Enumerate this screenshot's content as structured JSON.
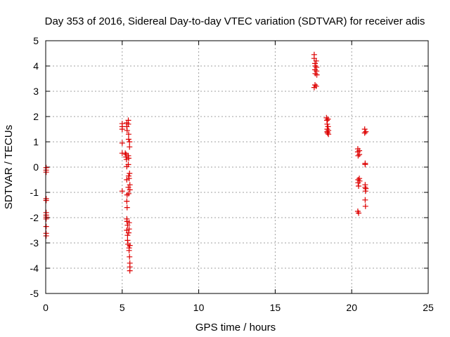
{
  "chart_data": {
    "type": "scatter",
    "title": "Day 353 of 2016, Sidereal Day-to-day VTEC variation (SDTVAR) for receiver adis",
    "xlabel": "GPS time / hours",
    "ylabel": "SDTVAR / TECUs",
    "xlim": [
      0,
      25
    ],
    "ylim": [
      -5,
      5
    ],
    "xticks": [
      0,
      5,
      10,
      15,
      20,
      25
    ],
    "yticks": [
      -5,
      -4,
      -3,
      -2,
      -1,
      0,
      1,
      2,
      3,
      4,
      5
    ],
    "grid": true,
    "marker": "plus",
    "color": "#dd0000",
    "series": [
      {
        "name": "SDTVAR",
        "points": [
          [
            0.03,
            -0.02
          ],
          [
            0.03,
            -0.12
          ],
          [
            0.03,
            -0.2
          ],
          [
            0.03,
            -1.25
          ],
          [
            0.03,
            -1.32
          ],
          [
            0.03,
            -1.8
          ],
          [
            0.03,
            -1.9
          ],
          [
            0.03,
            -1.98
          ],
          [
            0.03,
            -2.05
          ],
          [
            0.03,
            -2.35
          ],
          [
            0.03,
            -2.62
          ],
          [
            0.03,
            -2.72
          ],
          [
            5.0,
            1.72
          ],
          [
            5.0,
            1.6
          ],
          [
            5.0,
            1.5
          ],
          [
            5.0,
            0.95
          ],
          [
            5.0,
            0.55
          ],
          [
            5.0,
            -0.95
          ],
          [
            5.2,
            0.55
          ],
          [
            5.25,
            0.5
          ],
          [
            5.25,
            0.4
          ],
          [
            5.28,
            0.3
          ],
          [
            5.3,
            1.75
          ],
          [
            5.3,
            1.6
          ],
          [
            5.32,
            1.45
          ],
          [
            5.3,
            0.02
          ],
          [
            5.3,
            -0.5
          ],
          [
            5.32,
            -1.1
          ],
          [
            5.3,
            -1.35
          ],
          [
            5.32,
            -1.6
          ],
          [
            5.3,
            -2.05
          ],
          [
            5.32,
            -2.15
          ],
          [
            5.35,
            -2.3
          ],
          [
            5.3,
            -2.5
          ],
          [
            5.35,
            -2.7
          ],
          [
            5.35,
            -2.9
          ],
          [
            5.38,
            -3.05
          ],
          [
            5.4,
            1.85
          ],
          [
            5.4,
            1.7
          ],
          [
            5.42,
            1.3
          ],
          [
            5.42,
            1.1
          ],
          [
            5.4,
            0.45
          ],
          [
            5.42,
            0.35
          ],
          [
            5.4,
            0.1
          ],
          [
            5.42,
            -0.35
          ],
          [
            5.45,
            -0.45
          ],
          [
            5.4,
            -0.8
          ],
          [
            5.42,
            -1.05
          ],
          [
            5.45,
            -2.2
          ],
          [
            5.45,
            -2.45
          ],
          [
            5.42,
            -2.6
          ],
          [
            5.45,
            -3.2
          ],
          [
            5.45,
            -3.3
          ],
          [
            5.48,
            -3.55
          ],
          [
            5.48,
            1.0
          ],
          [
            5.48,
            0.8
          ],
          [
            5.48,
            -0.25
          ],
          [
            5.5,
            -0.7
          ],
          [
            5.5,
            -0.9
          ],
          [
            5.5,
            -3.1
          ],
          [
            5.5,
            -3.8
          ],
          [
            5.5,
            -3.95
          ],
          [
            5.5,
            -4.1
          ],
          [
            17.55,
            4.45
          ],
          [
            17.55,
            4.3
          ],
          [
            17.6,
            4.1
          ],
          [
            17.62,
            4.0
          ],
          [
            17.6,
            3.85
          ],
          [
            17.62,
            3.7
          ],
          [
            17.55,
            3.15
          ],
          [
            17.6,
            3.25
          ],
          [
            17.68,
            4.2
          ],
          [
            17.7,
            3.95
          ],
          [
            17.7,
            3.8
          ],
          [
            17.72,
            3.65
          ],
          [
            17.68,
            3.2
          ],
          [
            18.35,
            1.95
          ],
          [
            18.38,
            1.85
          ],
          [
            18.4,
            1.7
          ],
          [
            18.4,
            1.5
          ],
          [
            18.4,
            1.4
          ],
          [
            18.42,
            1.35
          ],
          [
            18.45,
            1.9
          ],
          [
            18.45,
            1.6
          ],
          [
            18.48,
            1.45
          ],
          [
            18.48,
            1.3
          ],
          [
            20.4,
            0.72
          ],
          [
            20.4,
            0.6
          ],
          [
            20.42,
            0.45
          ],
          [
            20.42,
            -0.5
          ],
          [
            20.42,
            -0.62
          ],
          [
            20.45,
            -0.75
          ],
          [
            20.4,
            -1.75
          ],
          [
            20.45,
            -1.82
          ],
          [
            20.5,
            0.65
          ],
          [
            20.5,
            0.5
          ],
          [
            20.5,
            -0.45
          ],
          [
            20.52,
            -0.55
          ],
          [
            20.85,
            1.5
          ],
          [
            20.85,
            1.35
          ],
          [
            20.88,
            0.1
          ],
          [
            20.88,
            0.15
          ],
          [
            20.88,
            -0.7
          ],
          [
            20.88,
            -0.8
          ],
          [
            20.9,
            -0.95
          ],
          [
            20.88,
            -1.3
          ],
          [
            20.9,
            -1.55
          ],
          [
            20.92,
            1.4
          ],
          [
            20.92,
            -0.85
          ]
        ]
      }
    ]
  }
}
